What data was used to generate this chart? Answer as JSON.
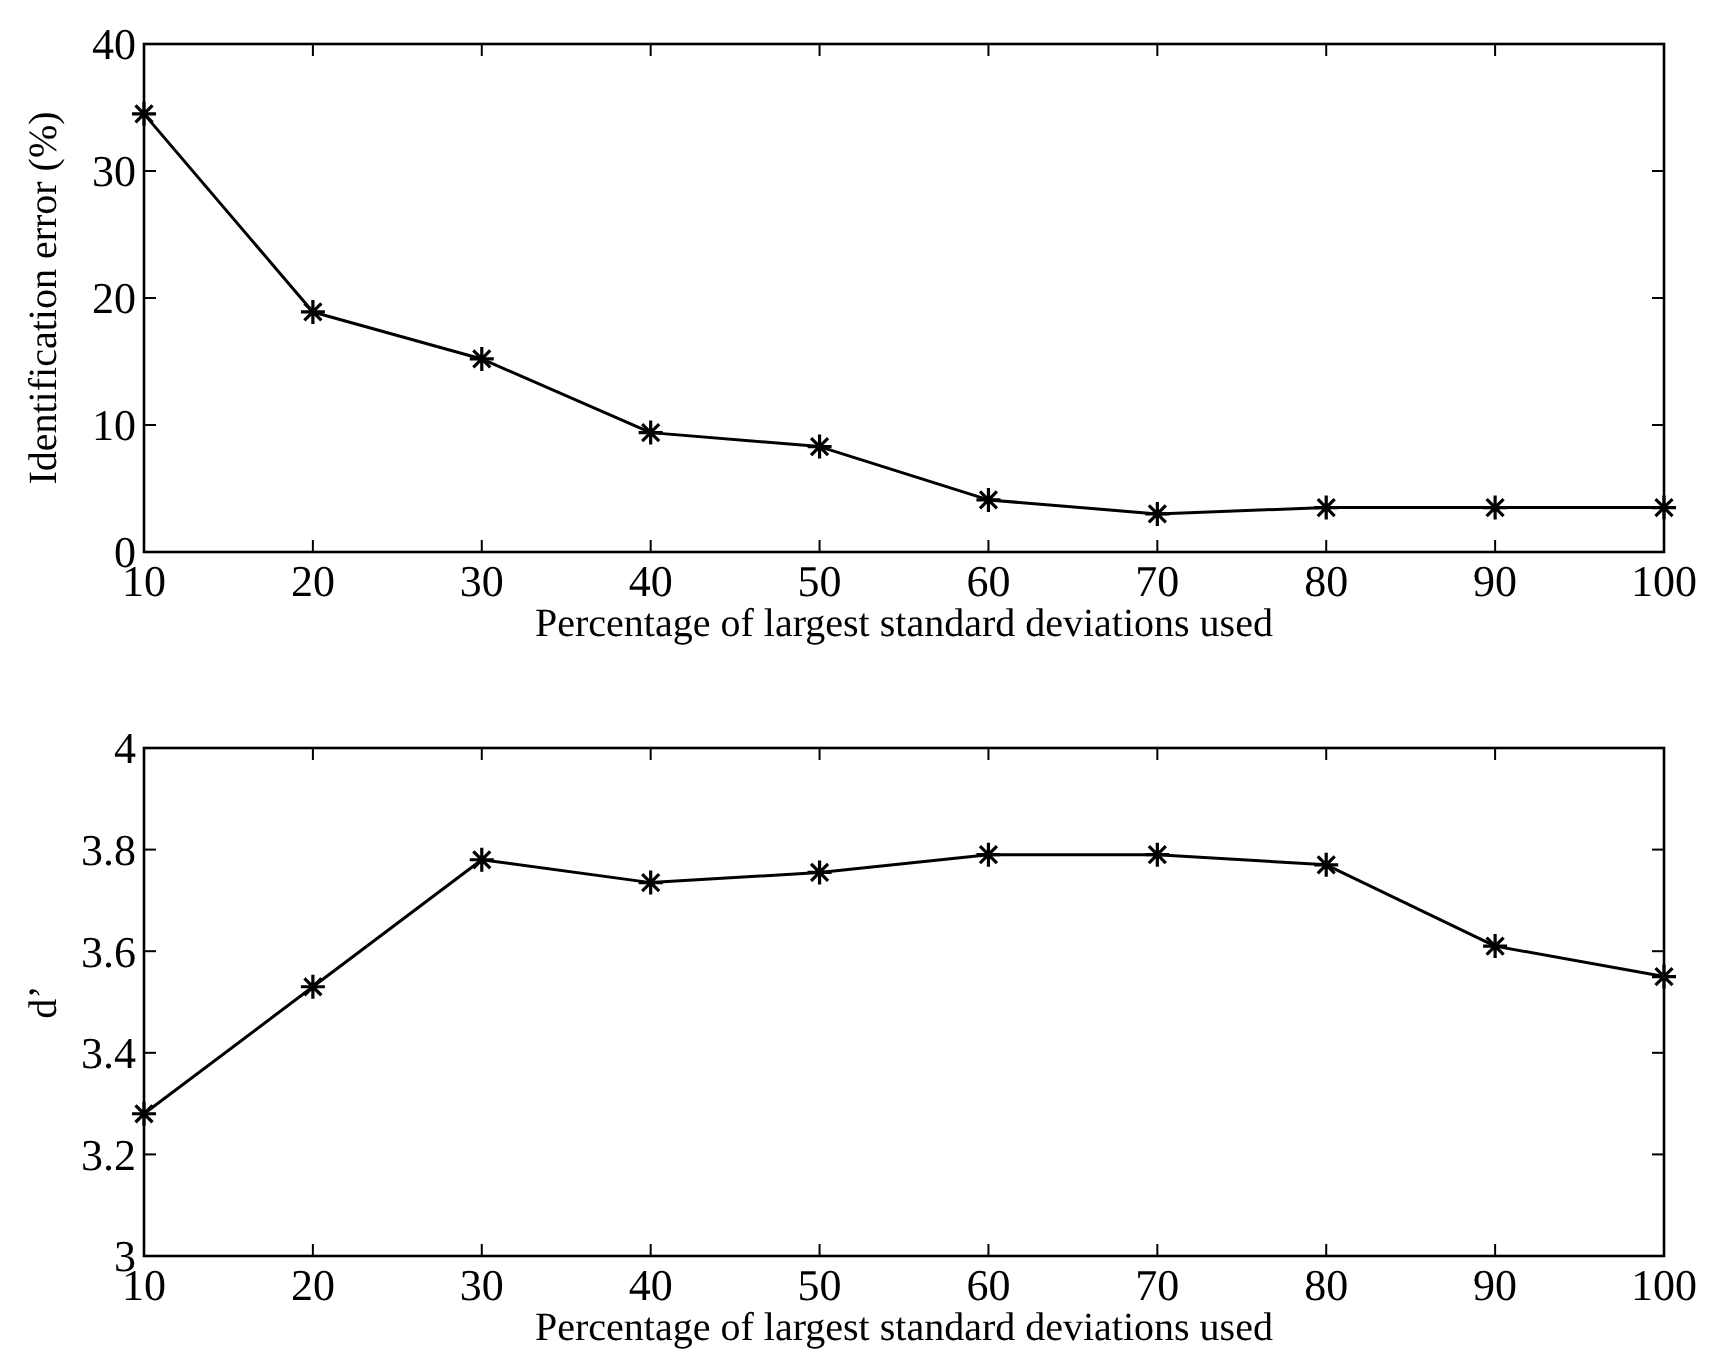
{
  "chart_data": [
    {
      "type": "line",
      "x": [
        10,
        20,
        30,
        40,
        50,
        60,
        70,
        80,
        90,
        100
      ],
      "xlim": [
        10,
        100
      ],
      "xticks": [
        10,
        20,
        30,
        40,
        50,
        60,
        70,
        80,
        90,
        100
      ],
      "ylim": [
        0,
        40
      ],
      "yticks": [
        0,
        10,
        20,
        30,
        40
      ],
      "xlabel": "Percentage of largest standard deviations used",
      "ylabel": "Identification error (%)",
      "marker": "cross",
      "grid": false,
      "series": [
        {
          "color": "#000000",
          "values": [
            34.5,
            18.9,
            15.2,
            9.4,
            8.3,
            4.1,
            3.0,
            3.5,
            3.5,
            3.5
          ]
        }
      ]
    },
    {
      "type": "line",
      "x": [
        10,
        20,
        30,
        40,
        50,
        60,
        70,
        80,
        90,
        100
      ],
      "xlim": [
        10,
        100
      ],
      "xticks": [
        10,
        20,
        30,
        40,
        50,
        60,
        70,
        80,
        90,
        100
      ],
      "ylim": [
        3,
        4
      ],
      "yticks": [
        3,
        3.2,
        3.4,
        3.6,
        3.8,
        4
      ],
      "xlabel": "Percentage of largest standard deviations used",
      "ylabel": "d’",
      "marker": "cross",
      "grid": false,
      "series": [
        {
          "color": "#000000",
          "values": [
            3.28,
            3.53,
            3.78,
            3.735,
            3.755,
            3.79,
            3.79,
            3.77,
            3.61,
            3.55
          ]
        }
      ]
    }
  ]
}
